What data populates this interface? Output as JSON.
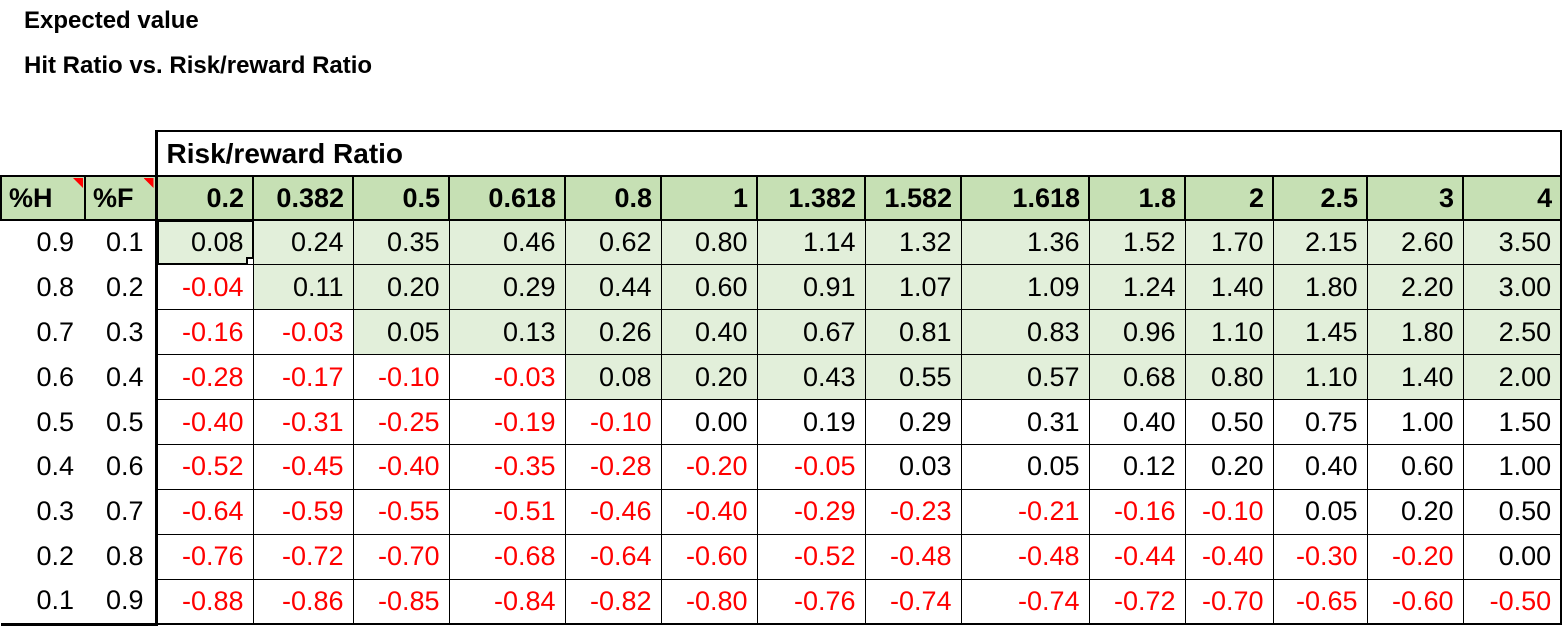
{
  "titles": {
    "line1": "Expected value",
    "line2": "Hit Ratio vs. Risk/reward Ratio"
  },
  "table": {
    "group_header": "Risk/reward Ratio",
    "corner_headers": [
      "%H",
      "%F"
    ],
    "columns": [
      "0.2",
      "0.382",
      "0.5",
      "0.618",
      "0.8",
      "1",
      "1.382",
      "1.582",
      "1.618",
      "1.8",
      "2",
      "2.5",
      "3",
      "4"
    ],
    "rows": [
      {
        "h": "0.9",
        "f": "0.1",
        "values": [
          "0.08",
          "0.24",
          "0.35",
          "0.46",
          "0.62",
          "0.80",
          "1.14",
          "1.32",
          "1.36",
          "1.52",
          "1.70",
          "2.15",
          "2.60",
          "3.50"
        ]
      },
      {
        "h": "0.8",
        "f": "0.2",
        "values": [
          "-0.04",
          "0.11",
          "0.20",
          "0.29",
          "0.44",
          "0.60",
          "0.91",
          "1.07",
          "1.09",
          "1.24",
          "1.40",
          "1.80",
          "2.20",
          "3.00"
        ]
      },
      {
        "h": "0.7",
        "f": "0.3",
        "values": [
          "-0.16",
          "-0.03",
          "0.05",
          "0.13",
          "0.26",
          "0.40",
          "0.67",
          "0.81",
          "0.83",
          "0.96",
          "1.10",
          "1.45",
          "1.80",
          "2.50"
        ]
      },
      {
        "h": "0.6",
        "f": "0.4",
        "values": [
          "-0.28",
          "-0.17",
          "-0.10",
          "-0.03",
          "0.08",
          "0.20",
          "0.43",
          "0.55",
          "0.57",
          "0.68",
          "0.80",
          "1.10",
          "1.40",
          "2.00"
        ]
      },
      {
        "h": "0.5",
        "f": "0.5",
        "values": [
          "-0.40",
          "-0.31",
          "-0.25",
          "-0.19",
          "-0.10",
          "0.00",
          "0.19",
          "0.29",
          "0.31",
          "0.40",
          "0.50",
          "0.75",
          "1.00",
          "1.50"
        ]
      },
      {
        "h": "0.4",
        "f": "0.6",
        "values": [
          "-0.52",
          "-0.45",
          "-0.40",
          "-0.35",
          "-0.28",
          "-0.20",
          "-0.05",
          "0.03",
          "0.05",
          "0.12",
          "0.20",
          "0.40",
          "0.60",
          "1.00"
        ]
      },
      {
        "h": "0.3",
        "f": "0.7",
        "values": [
          "-0.64",
          "-0.59",
          "-0.55",
          "-0.51",
          "-0.46",
          "-0.40",
          "-0.29",
          "-0.23",
          "-0.21",
          "-0.16",
          "-0.10",
          "0.05",
          "0.20",
          "0.50"
        ]
      },
      {
        "h": "0.2",
        "f": "0.8",
        "values": [
          "-0.76",
          "-0.72",
          "-0.70",
          "-0.68",
          "-0.64",
          "-0.60",
          "-0.52",
          "-0.48",
          "-0.48",
          "-0.44",
          "-0.40",
          "-0.30",
          "-0.20",
          "0.00"
        ]
      },
      {
        "h": "0.1",
        "f": "0.9",
        "values": [
          "-0.88",
          "-0.86",
          "-0.85",
          "-0.84",
          "-0.82",
          "-0.80",
          "-0.76",
          "-0.74",
          "-0.74",
          "-0.72",
          "-0.70",
          "-0.65",
          "-0.60",
          "-0.50"
        ]
      }
    ],
    "selected_cell": {
      "row": 0,
      "col": 0
    }
  },
  "colors": {
    "header_fill": "#c6e0b4",
    "positive_fill": "#e2efda",
    "negative_text": "#ff0000",
    "border": "#000000",
    "comment_flag": "#ff0000"
  }
}
